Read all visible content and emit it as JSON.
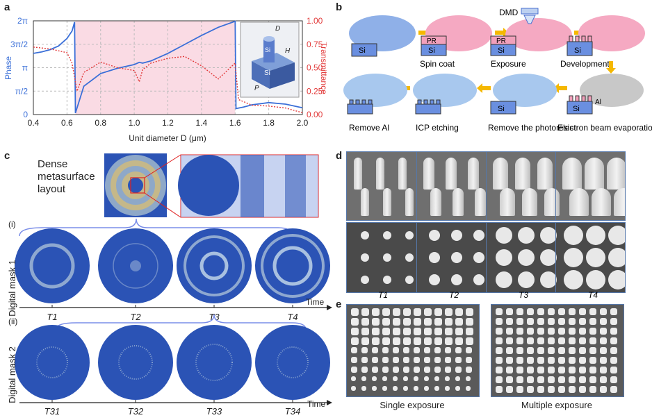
{
  "panels": {
    "a": "a",
    "b": "b",
    "c": "c",
    "d": "d",
    "e": "e"
  },
  "panel_a": {
    "xlabel": "Unit diameter D (μm)",
    "ylabel_left": "Phase",
    "ylabel_right": "Transmittance",
    "x_ticks": [
      "0.4",
      "0.6",
      "0.8",
      "1.0",
      "1.2",
      "1.4",
      "1.6",
      "1.8",
      "2.0"
    ],
    "y_left_ticks": [
      "0",
      "π/2",
      "π",
      "3π/2",
      "2π"
    ],
    "y_right_ticks": [
      "0.00",
      "0.25",
      "0.50",
      "0.75",
      "1.00"
    ],
    "inset_labels": {
      "d": "D",
      "h": "H",
      "p": "P",
      "si_top": "Si",
      "si_base": "Si"
    }
  },
  "chart_data": {
    "type": "line",
    "xlim": [
      0.4,
      2.0
    ],
    "ylim_left": [
      0,
      6.2832
    ],
    "ylim_right": [
      0.0,
      1.0
    ],
    "shaded_region": [
      0.65,
      1.6
    ],
    "series": [
      {
        "axis": "left",
        "color": "#3a6fd8",
        "x": [
          0.4,
          0.45,
          0.5,
          0.55,
          0.6,
          0.63,
          0.645,
          0.65,
          0.7,
          0.8,
          0.9,
          1.0,
          1.03,
          1.05,
          1.1,
          1.2,
          1.3,
          1.4,
          1.5,
          1.6,
          1.605,
          1.65,
          1.7,
          1.8,
          1.9,
          2.0
        ],
        "y": [
          4.1,
          4.2,
          4.35,
          4.6,
          5.1,
          5.6,
          6.2,
          0.1,
          1.9,
          2.75,
          3.1,
          3.35,
          3.5,
          3.45,
          3.6,
          4.1,
          4.7,
          5.3,
          5.85,
          6.25,
          0.4,
          0.5,
          0.65,
          0.8,
          0.7,
          0.45
        ]
      },
      {
        "axis": "right",
        "color": "#e23b3b",
        "x": [
          0.4,
          0.5,
          0.6,
          0.63,
          0.66,
          0.7,
          0.8,
          0.9,
          1.0,
          1.03,
          1.05,
          1.1,
          1.2,
          1.3,
          1.4,
          1.5,
          1.6,
          1.62,
          1.7,
          1.8,
          1.9,
          2.0
        ],
        "y": [
          0.72,
          0.7,
          0.66,
          0.55,
          0.25,
          0.45,
          0.56,
          0.5,
          0.47,
          0.35,
          0.48,
          0.55,
          0.6,
          0.62,
          0.52,
          0.38,
          0.55,
          0.16,
          0.1,
          0.09,
          0.07,
          0.02
        ]
      }
    ]
  },
  "panel_b": {
    "dmd_label": "DMD",
    "steps": [
      "Spin coat",
      "Exposure",
      "Development",
      "Remove Al",
      "ICP etching",
      "Remove the photoresist",
      "Electron beam evaporation"
    ],
    "layer_si": "Si",
    "layer_pr": "PR",
    "layer_al": "Al"
  },
  "panel_c": {
    "layout_title": "Dense metasurface layout",
    "row1_label": "(i)",
    "row2_label": "(ii)",
    "mask1_label": "Digital mask 1",
    "mask2_label": "Digital mask 2",
    "time_label": "Time",
    "times1": [
      "T1",
      "T2",
      "T3",
      "T4"
    ],
    "times2": [
      "T31",
      "T32",
      "T33",
      "T34"
    ]
  },
  "panel_d": {
    "times": [
      "T1",
      "T2",
      "T3",
      "T4"
    ]
  },
  "panel_e": {
    "left_caption": "Single exposure",
    "right_caption": "Multiple exposure"
  }
}
